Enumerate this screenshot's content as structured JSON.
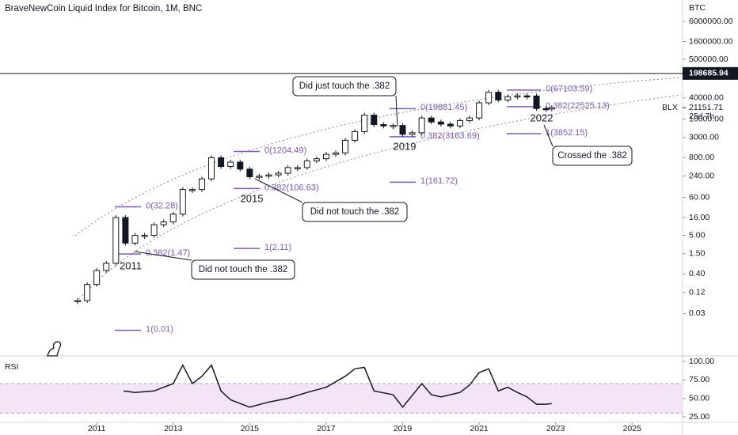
{
  "chart_data": {
    "type": "candlestick",
    "title": "BraveNewCoin Liquid Index for Bitcoin, 1M, BNC",
    "unit": "BTC",
    "x": [
      2010.5,
      2010.75,
      2011.0,
      2011.25,
      2011.5,
      2011.75,
      2012.0,
      2012.25,
      2012.5,
      2012.75,
      2013.0,
      2013.25,
      2013.5,
      2013.75,
      2014.0,
      2014.25,
      2014.5,
      2014.75,
      2015.0,
      2015.25,
      2015.5,
      2015.75,
      2016.0,
      2016.25,
      2016.5,
      2016.75,
      2017.0,
      2017.25,
      2017.5,
      2017.75,
      2018.0,
      2018.25,
      2018.5,
      2018.75,
      2019.0,
      2019.25,
      2019.5,
      2019.75,
      2020.0,
      2020.25,
      2020.5,
      2020.75,
      2021.0,
      2021.25,
      2021.5,
      2021.75,
      2022.0,
      2022.25,
      2022.5,
      2022.75,
      2022.9
    ],
    "series": [
      {
        "name": "BLX",
        "color": "#131722",
        "values": [
          0.07,
          0.2,
          0.5,
          0.8,
          16,
          3,
          5,
          5,
          10,
          12,
          20,
          100,
          100,
          200,
          800,
          450,
          600,
          380,
          230,
          240,
          260,
          290,
          420,
          420,
          650,
          750,
          1000,
          1100,
          2500,
          4400,
          13000,
          7000,
          6400,
          6600,
          3700,
          4100,
          10800,
          8300,
          7200,
          6400,
          9100,
          10800,
          29000,
          58000,
          35000,
          43000,
          46000,
          45500,
          20000,
          19400,
          21151.71
        ]
      }
    ],
    "log_scale": true,
    "grid": false,
    "xlim": [
      2008.47,
      2026.32
    ],
    "xticks": [
      2011,
      2013,
      2015,
      2017,
      2019,
      2021,
      2023,
      2025
    ],
    "ylim": [
      0.00187,
      24270000
    ],
    "yticks": [
      {
        "value": 6000000,
        "label": "6000000.00"
      },
      {
        "value": 1600000,
        "label": "1600000.00"
      },
      {
        "value": 500000,
        "label": "500000.00"
      },
      {
        "value": 40000,
        "label": "40000.00"
      },
      {
        "value": 10000,
        "label": "10000.00"
      },
      {
        "value": 3000,
        "label": "3000.00"
      },
      {
        "value": 800,
        "label": "800.00"
      },
      {
        "value": 240,
        "label": "240.00"
      },
      {
        "value": 60,
        "label": "60.00"
      },
      {
        "value": 16,
        "label": "16.00"
      },
      {
        "value": 5,
        "label": "5.00"
      },
      {
        "value": 1.5,
        "label": "1.50"
      },
      {
        "value": 0.4,
        "label": "0.40"
      },
      {
        "value": 0.12,
        "label": "0.12"
      },
      {
        "value": 0.03,
        "label": "0.03"
      }
    ],
    "hline": {
      "value": 198685.94,
      "label": "198685.94"
    },
    "last": {
      "value": 21151.71,
      "label": "21151.71",
      "countdown": "25d 7h"
    },
    "fib_levels": [
      {
        "value": 32.28,
        "label": "0(32.28)"
      },
      {
        "value": 1.47,
        "label": "0.382(1.47)"
      },
      {
        "value": 0.01,
        "label": "1(0.01)"
      },
      {
        "value": 1204.49,
        "label": "0(1204.49)"
      },
      {
        "value": 106.63,
        "label": "0.382(106.63)"
      },
      {
        "value": 2.11,
        "label": "1(2.11)"
      },
      {
        "value": 19881.45,
        "label": "0(19881.45)"
      },
      {
        "value": 3163.69,
        "label": "0.382(3163.69)"
      },
      {
        "value": 161.72,
        "label": "1(161.72)"
      },
      {
        "value": 67103.59,
        "label": "0(67103.59)"
      },
      {
        "value": 22525.13,
        "label": "0.382(22525.13)"
      },
      {
        "value": 3852.15,
        "label": "1(3852.15)"
      }
    ],
    "fib_color": "#7e57c2",
    "year_labels": [
      "2011",
      "2015",
      "2019",
      "2022"
    ],
    "annotations": [
      "Did not touch the .382",
      "Did not touch the .382",
      "Did just touch the .382",
      "Crossed the .382"
    ],
    "rsi": {
      "type": "line",
      "title": "RSI",
      "color": "#131722",
      "x": [
        2011.7,
        2012.0,
        2012.5,
        2013.0,
        2013.25,
        2013.5,
        2013.75,
        2014.0,
        2014.25,
        2014.5,
        2015.0,
        2015.5,
        2016.0,
        2016.5,
        2017.0,
        2017.5,
        2017.75,
        2018.0,
        2018.25,
        2018.75,
        2019.0,
        2019.5,
        2019.75,
        2020.0,
        2020.5,
        2020.75,
        2021.0,
        2021.25,
        2021.5,
        2021.75,
        2022.0,
        2022.25,
        2022.5,
        2022.75,
        2022.9
      ],
      "values": [
        60,
        58,
        60,
        70,
        95,
        70,
        80,
        95,
        60,
        48,
        38,
        45,
        50,
        58,
        65,
        80,
        90,
        92,
        60,
        55,
        38,
        70,
        55,
        52,
        58,
        68,
        85,
        90,
        60,
        65,
        58,
        52,
        42,
        42,
        43
      ],
      "ylim": [
        16.4,
        107.5
      ],
      "yticks": [
        {
          "value": 100,
          "label": "100.00"
        },
        {
          "value": 75,
          "label": "75.00"
        },
        {
          "value": 50,
          "label": "50.00"
        },
        {
          "value": 25,
          "label": "25.00"
        }
      ],
      "band": [
        30,
        70
      ],
      "band_color": "#f3e5f5"
    }
  }
}
